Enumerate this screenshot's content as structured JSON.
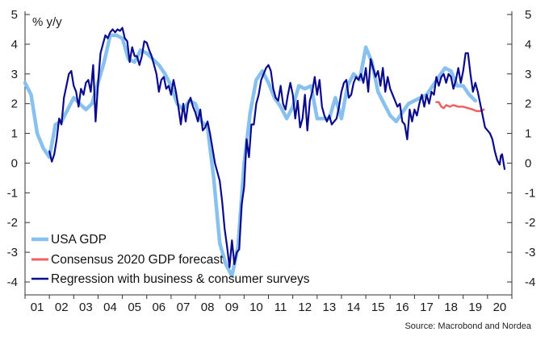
{
  "chart_data": {
    "type": "line",
    "unit_label": "% y/y",
    "source": "Source: Macrobond and Nordea",
    "ylim": [
      -4,
      5
    ],
    "y_ticks": [
      5,
      4,
      3,
      2,
      1,
      0,
      -1,
      -2,
      -3,
      -4
    ],
    "y_tick_labels": [
      "5",
      "4",
      "3",
      "2",
      "1",
      "0",
      "-1",
      "-2",
      "-3",
      "-4"
    ],
    "x_tick_labels": [
      "01",
      "02",
      "03",
      "04",
      "05",
      "06",
      "07",
      "08",
      "09",
      "10",
      "11",
      "12",
      "13",
      "14",
      "15",
      "16",
      "17",
      "18",
      "19",
      "20"
    ],
    "x_range": [
      2001.0,
      2021.0
    ],
    "grid": false,
    "legend_position": "bottom-left",
    "series": [
      {
        "name": "USA GDP",
        "color": "#88c1ee",
        "width": 4.5,
        "points": [
          [
            2001.0,
            2.7
          ],
          [
            2001.25,
            2.3
          ],
          [
            2001.5,
            1.0
          ],
          [
            2001.75,
            0.5
          ],
          [
            2002.0,
            0.2
          ],
          [
            2002.25,
            1.3
          ],
          [
            2002.5,
            1.4
          ],
          [
            2002.75,
            1.8
          ],
          [
            2003.0,
            2.2
          ],
          [
            2003.25,
            2.0
          ],
          [
            2003.5,
            1.8
          ],
          [
            2003.75,
            2.0
          ],
          [
            2004.0,
            2.7
          ],
          [
            2004.25,
            3.4
          ],
          [
            2004.5,
            4.3
          ],
          [
            2004.75,
            4.3
          ],
          [
            2005.0,
            4.2
          ],
          [
            2005.25,
            3.5
          ],
          [
            2005.5,
            3.4
          ],
          [
            2005.75,
            3.8
          ],
          [
            2006.0,
            3.7
          ],
          [
            2006.25,
            3.5
          ],
          [
            2006.5,
            3.3
          ],
          [
            2006.75,
            3.0
          ],
          [
            2007.0,
            2.6
          ],
          [
            2007.25,
            2.0
          ],
          [
            2007.5,
            1.8
          ],
          [
            2007.75,
            2.1
          ],
          [
            2008.0,
            2.0
          ],
          [
            2008.25,
            1.4
          ],
          [
            2008.5,
            1.2
          ],
          [
            2008.75,
            -0.5
          ],
          [
            2009.0,
            -2.7
          ],
          [
            2009.25,
            -3.4
          ],
          [
            2009.5,
            -3.8
          ],
          [
            2009.75,
            -2.8
          ],
          [
            2010.0,
            0.0
          ],
          [
            2010.25,
            1.7
          ],
          [
            2010.5,
            2.8
          ],
          [
            2010.75,
            3.1
          ],
          [
            2011.0,
            2.7
          ],
          [
            2011.25,
            2.2
          ],
          [
            2011.5,
            1.9
          ],
          [
            2011.75,
            1.5
          ],
          [
            2012.0,
            1.9
          ],
          [
            2012.25,
            2.6
          ],
          [
            2012.5,
            2.5
          ],
          [
            2012.75,
            2.6
          ],
          [
            2013.0,
            1.5
          ],
          [
            2013.25,
            1.5
          ],
          [
            2013.5,
            1.5
          ],
          [
            2013.75,
            2.2
          ],
          [
            2014.0,
            1.5
          ],
          [
            2014.25,
            2.6
          ],
          [
            2014.5,
            3.0
          ],
          [
            2014.75,
            2.8
          ],
          [
            2015.0,
            3.9
          ],
          [
            2015.25,
            3.4
          ],
          [
            2015.5,
            2.4
          ],
          [
            2015.75,
            2.0
          ],
          [
            2016.0,
            1.6
          ],
          [
            2016.25,
            1.4
          ],
          [
            2016.5,
            1.7
          ],
          [
            2016.75,
            2.0
          ],
          [
            2017.0,
            2.1
          ],
          [
            2017.25,
            2.2
          ],
          [
            2017.5,
            2.3
          ],
          [
            2017.75,
            2.6
          ],
          [
            2018.0,
            2.9
          ],
          [
            2018.25,
            3.2
          ],
          [
            2018.5,
            3.1
          ],
          [
            2018.75,
            2.6
          ],
          [
            2019.0,
            2.6
          ],
          [
            2019.25,
            2.3
          ],
          [
            2019.5,
            2.1
          ]
        ]
      },
      {
        "name": "Consensus 2020 GDP forecast",
        "color": "#f06060",
        "width": 2.5,
        "points": [
          [
            2017.9,
            2.05
          ],
          [
            2018.0,
            2.05
          ],
          [
            2018.1,
            1.9
          ],
          [
            2018.2,
            1.85
          ],
          [
            2018.3,
            1.95
          ],
          [
            2018.45,
            1.9
          ],
          [
            2018.6,
            1.95
          ],
          [
            2018.8,
            1.9
          ],
          [
            2019.0,
            1.9
          ],
          [
            2019.2,
            1.85
          ],
          [
            2019.4,
            1.8
          ],
          [
            2019.55,
            1.75
          ],
          [
            2019.7,
            1.75
          ],
          [
            2019.85,
            1.8
          ]
        ]
      },
      {
        "name": "Regression with business & consumer surveys",
        "color": "#0a0a8c",
        "width": 2.2,
        "points": [
          [
            2002.0,
            0.4
          ],
          [
            2002.1,
            0.05
          ],
          [
            2002.2,
            0.3
          ],
          [
            2002.3,
            0.8
          ],
          [
            2002.4,
            1.5
          ],
          [
            2002.5,
            1.3
          ],
          [
            2002.6,
            2.2
          ],
          [
            2002.7,
            2.6
          ],
          [
            2002.8,
            3.0
          ],
          [
            2002.9,
            3.1
          ],
          [
            2003.0,
            2.6
          ],
          [
            2003.1,
            2.4
          ],
          [
            2003.2,
            1.9
          ],
          [
            2003.3,
            2.5
          ],
          [
            2003.4,
            2.3
          ],
          [
            2003.5,
            2.7
          ],
          [
            2003.6,
            2.8
          ],
          [
            2003.7,
            2.4
          ],
          [
            2003.8,
            3.3
          ],
          [
            2003.9,
            1.4
          ],
          [
            2004.0,
            2.7
          ],
          [
            2004.1,
            3.7
          ],
          [
            2004.2,
            4.0
          ],
          [
            2004.3,
            4.3
          ],
          [
            2004.4,
            4.2
          ],
          [
            2004.5,
            4.4
          ],
          [
            2004.6,
            4.5
          ],
          [
            2004.7,
            4.4
          ],
          [
            2004.8,
            4.5
          ],
          [
            2004.9,
            4.45
          ],
          [
            2005.0,
            4.55
          ],
          [
            2005.1,
            4.2
          ],
          [
            2005.2,
            4.1
          ],
          [
            2005.3,
            3.4
          ],
          [
            2005.4,
            3.9
          ],
          [
            2005.5,
            3.6
          ],
          [
            2005.6,
            3.6
          ],
          [
            2005.7,
            3.3
          ],
          [
            2005.8,
            3.6
          ],
          [
            2005.9,
            4.1
          ],
          [
            2006.0,
            4.05
          ],
          [
            2006.1,
            3.8
          ],
          [
            2006.2,
            3.6
          ],
          [
            2006.3,
            3.3
          ],
          [
            2006.4,
            3.0
          ],
          [
            2006.5,
            2.4
          ],
          [
            2006.6,
            2.8
          ],
          [
            2006.7,
            2.9
          ],
          [
            2006.8,
            2.5
          ],
          [
            2006.9,
            2.6
          ],
          [
            2007.0,
            2.3
          ],
          [
            2007.1,
            2.8
          ],
          [
            2007.2,
            2.4
          ],
          [
            2007.3,
            1.9
          ],
          [
            2007.4,
            1.3
          ],
          [
            2007.5,
            2.0
          ],
          [
            2007.6,
            1.4
          ],
          [
            2007.7,
            2.0
          ],
          [
            2007.8,
            2.2
          ],
          [
            2007.9,
            1.9
          ],
          [
            2008.0,
            1.7
          ],
          [
            2008.1,
            1.4
          ],
          [
            2008.2,
            1.8
          ],
          [
            2008.3,
            1.1
          ],
          [
            2008.4,
            1.2
          ],
          [
            2008.5,
            1.4
          ],
          [
            2008.6,
            1.0
          ],
          [
            2008.7,
            0.5
          ],
          [
            2008.8,
            0.0
          ],
          [
            2008.9,
            -0.3
          ],
          [
            2009.0,
            -0.6
          ],
          [
            2009.1,
            -1.3
          ],
          [
            2009.2,
            -2.2
          ],
          [
            2009.3,
            -2.8
          ],
          [
            2009.4,
            -3.5
          ],
          [
            2009.5,
            -2.6
          ],
          [
            2009.6,
            -3.4
          ],
          [
            2009.7,
            -3.0
          ],
          [
            2009.8,
            -2.9
          ],
          [
            2009.9,
            -1.4
          ],
          [
            2010.0,
            -0.8
          ],
          [
            2010.1,
            0.8
          ],
          [
            2010.2,
            0.2
          ],
          [
            2010.3,
            1.3
          ],
          [
            2010.4,
            1.3
          ],
          [
            2010.5,
            2.0
          ],
          [
            2010.6,
            2.3
          ],
          [
            2010.7,
            2.8
          ],
          [
            2010.8,
            3.0
          ],
          [
            2010.9,
            3.2
          ],
          [
            2011.0,
            3.3
          ],
          [
            2011.1,
            3.1
          ],
          [
            2011.2,
            2.5
          ],
          [
            2011.3,
            2.2
          ],
          [
            2011.4,
            2.1
          ],
          [
            2011.5,
            2.6
          ],
          [
            2011.6,
            2.0
          ],
          [
            2011.7,
            1.8
          ],
          [
            2011.8,
            2.3
          ],
          [
            2011.9,
            2.7
          ],
          [
            2012.0,
            2.3
          ],
          [
            2012.1,
            1.5
          ],
          [
            2012.2,
            2.1
          ],
          [
            2012.3,
            1.2
          ],
          [
            2012.4,
            1.5
          ],
          [
            2012.5,
            2.3
          ],
          [
            2012.6,
            1.1
          ],
          [
            2012.7,
            2.1
          ],
          [
            2012.8,
            2.4
          ],
          [
            2012.9,
            2.9
          ],
          [
            2013.0,
            2.3
          ],
          [
            2013.1,
            2.8
          ],
          [
            2013.2,
            1.9
          ],
          [
            2013.3,
            1.6
          ],
          [
            2013.4,
            1.4
          ],
          [
            2013.5,
            1.6
          ],
          [
            2013.6,
            1.3
          ],
          [
            2013.7,
            1.4
          ],
          [
            2013.8,
            1.5
          ],
          [
            2013.9,
            1.9
          ],
          [
            2014.0,
            2.4
          ],
          [
            2014.1,
            2.7
          ],
          [
            2014.2,
            2.8
          ],
          [
            2014.3,
            2.2
          ],
          [
            2014.4,
            2.3
          ],
          [
            2014.5,
            2.7
          ],
          [
            2014.6,
            2.9
          ],
          [
            2014.7,
            2.8
          ],
          [
            2014.8,
            3.0
          ],
          [
            2014.9,
            2.7
          ],
          [
            2015.0,
            3.2
          ],
          [
            2015.1,
            2.4
          ],
          [
            2015.2,
            3.5
          ],
          [
            2015.3,
            3.2
          ],
          [
            2015.4,
            2.9
          ],
          [
            2015.5,
            3.1
          ],
          [
            2015.6,
            2.6
          ],
          [
            2015.7,
            3.2
          ],
          [
            2015.8,
            2.4
          ],
          [
            2015.9,
            2.9
          ],
          [
            2016.0,
            2.5
          ],
          [
            2016.1,
            2.3
          ],
          [
            2016.2,
            2.1
          ],
          [
            2016.3,
            1.9
          ],
          [
            2016.4,
            2.0
          ],
          [
            2016.5,
            1.4
          ],
          [
            2016.6,
            1.3
          ],
          [
            2016.7,
            0.8
          ],
          [
            2016.8,
            1.8
          ],
          [
            2016.9,
            1.4
          ],
          [
            2017.0,
            1.8
          ],
          [
            2017.1,
            1.6
          ],
          [
            2017.2,
            2.0
          ],
          [
            2017.3,
            2.3
          ],
          [
            2017.4,
            1.9
          ],
          [
            2017.5,
            2.3
          ],
          [
            2017.6,
            2.0
          ],
          [
            2017.7,
            2.4
          ],
          [
            2017.8,
            2.3
          ],
          [
            2017.9,
            2.9
          ],
          [
            2018.0,
            2.6
          ],
          [
            2018.1,
            2.9
          ],
          [
            2018.2,
            3.0
          ],
          [
            2018.3,
            2.7
          ],
          [
            2018.4,
            3.0
          ],
          [
            2018.5,
            2.9
          ],
          [
            2018.6,
            2.5
          ],
          [
            2018.7,
            2.8
          ],
          [
            2018.8,
            3.2
          ],
          [
            2018.9,
            2.7
          ],
          [
            2019.0,
            3.1
          ],
          [
            2019.1,
            3.7
          ],
          [
            2019.2,
            3.7
          ],
          [
            2019.3,
            3.0
          ],
          [
            2019.4,
            2.4
          ],
          [
            2019.5,
            2.7
          ],
          [
            2019.6,
            2.4
          ],
          [
            2019.7,
            2.0
          ],
          [
            2019.8,
            1.6
          ],
          [
            2019.9,
            1.2
          ],
          [
            2020.0,
            1.1
          ],
          [
            2020.1,
            1.0
          ],
          [
            2020.2,
            0.8
          ],
          [
            2020.3,
            0.4
          ],
          [
            2020.4,
            0.1
          ],
          [
            2020.5,
            -0.05
          ],
          [
            2020.55,
            0.25
          ],
          [
            2020.6,
            0.3
          ],
          [
            2020.7,
            -0.2
          ]
        ]
      }
    ]
  }
}
